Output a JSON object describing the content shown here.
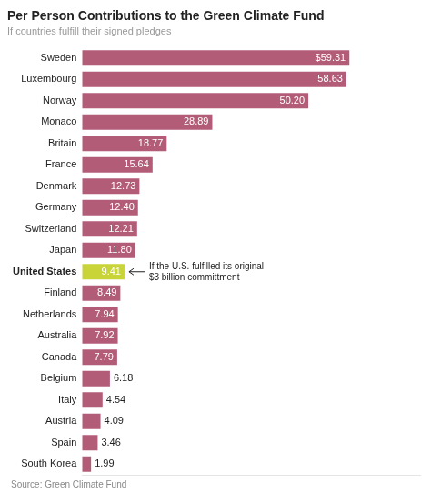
{
  "chart_data": {
    "type": "bar",
    "orientation": "horizontal",
    "title": "Per Person Contributions to the Green Climate Fund",
    "subtitle": "If countries fulfill their signed pledges",
    "source": "Source: Green Climate Fund",
    "categories": [
      "Sweden",
      "Luxembourg",
      "Norway",
      "Monaco",
      "Britain",
      "France",
      "Denmark",
      "Germany",
      "Switzerland",
      "Japan",
      "United States",
      "Finland",
      "Netherlands",
      "Australia",
      "Canada",
      "Belgium",
      "Italy",
      "Austria",
      "Spain",
      "South Korea"
    ],
    "values": [
      59.31,
      58.63,
      50.2,
      28.89,
      18.77,
      15.64,
      12.73,
      12.4,
      12.21,
      11.8,
      9.41,
      8.49,
      7.94,
      7.92,
      7.79,
      6.18,
      4.54,
      4.09,
      3.46,
      1.99
    ],
    "value_labels": [
      "$59.31",
      "58.63",
      "50.20",
      "28.89",
      "18.77",
      "15.64",
      "12.73",
      "12.40",
      "12.21",
      "11.80",
      "9.41",
      "8.49",
      "7.94",
      "7.92",
      "7.79",
      "6.18",
      "4.54",
      "4.09",
      "3.46",
      "1.99"
    ],
    "data_labels": true,
    "colors": [
      "#b35c78",
      "#b35c78",
      "#b35c78",
      "#b35c78",
      "#b35c78",
      "#b35c78",
      "#b35c78",
      "#b35c78",
      "#b35c78",
      "#b35c78",
      "#c8d437",
      "#b35c78",
      "#b35c78",
      "#b35c78",
      "#b35c78",
      "#b35c78",
      "#b35c78",
      "#b35c78",
      "#b35c78",
      "#b35c78"
    ],
    "annotations": [
      {
        "text": "If the U.S. fulfilled its original\n$3 billion committment",
        "category": "United States"
      }
    ],
    "xlim": [
      0,
      75
    ],
    "grid": false,
    "tick_labels": "y"
  }
}
